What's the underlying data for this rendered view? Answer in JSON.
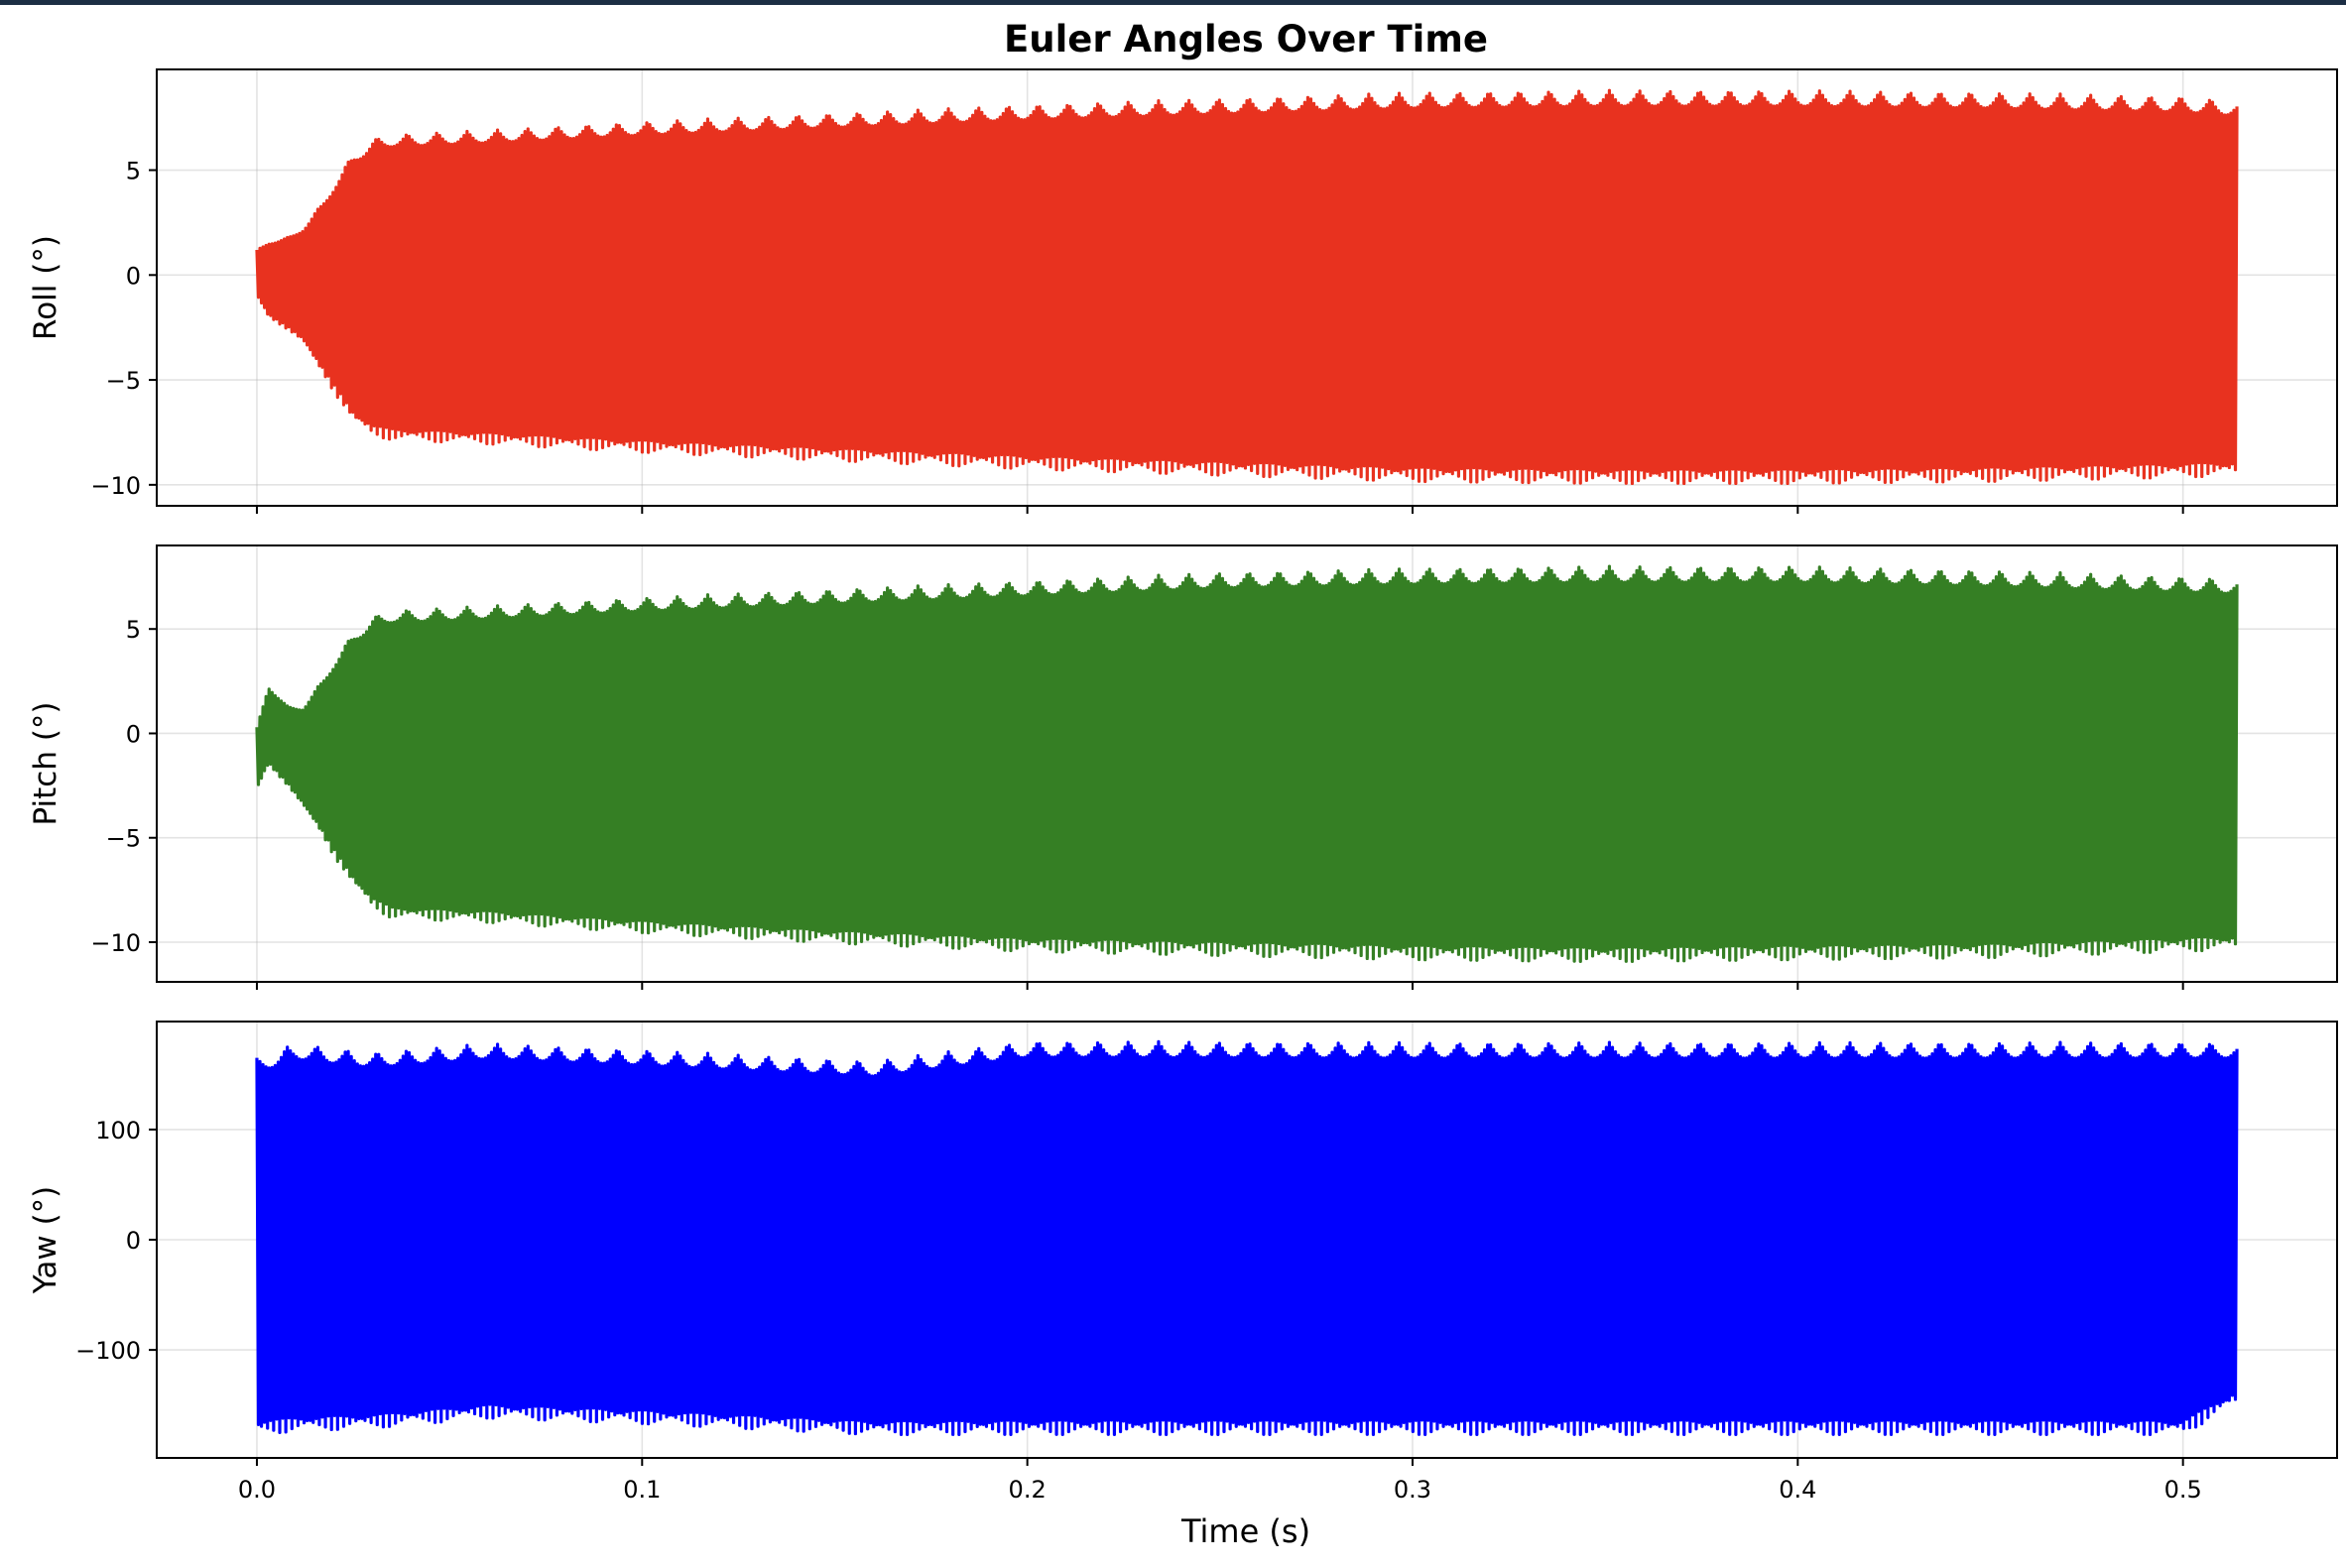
{
  "chart_data": {
    "type": "line",
    "title": "Euler Angles Over Time",
    "xlabel": "Time (s)",
    "xlim": [
      -0.026,
      0.54
    ],
    "xticks": [
      0.0,
      0.1,
      0.2,
      0.3,
      0.4,
      0.5
    ],
    "xtick_labels": [
      "0.0",
      "0.1",
      "0.2",
      "0.3",
      "0.4",
      "0.5"
    ],
    "grid": true,
    "t_end": 0.514,
    "panels": [
      {
        "ylabel": "Roll (°)",
        "color": "#e8321f",
        "ylim": [
          -11.0,
          9.8
        ],
        "yticks": [
          5,
          0,
          -5,
          -10
        ],
        "ytick_labels": [
          "5",
          "0",
          "−5",
          "−10"
        ],
        "envelope": {
          "t": [
            0.0,
            0.003,
            0.008,
            0.012,
            0.016,
            0.02,
            0.025,
            0.03,
            0.035,
            0.06,
            0.1,
            0.15,
            0.2,
            0.25,
            0.3,
            0.35,
            0.4,
            0.45,
            0.5,
            0.514
          ],
          "upper": [
            1.2,
            1.6,
            1.8,
            2.3,
            3.2,
            4.4,
            5.8,
            6.5,
            6.7,
            6.9,
            7.3,
            7.7,
            8.1,
            8.4,
            8.7,
            8.8,
            8.8,
            8.7,
            8.5,
            8.3
          ],
          "lower": [
            -1.0,
            -2.0,
            -2.6,
            -3.2,
            -4.4,
            -5.6,
            -7.0,
            -7.7,
            -7.9,
            -8.1,
            -8.5,
            -8.9,
            -9.3,
            -9.6,
            -9.9,
            -10.0,
            -10.0,
            -9.9,
            -9.7,
            -9.6
          ]
        }
      },
      {
        "ylabel": "Pitch (°)",
        "color": "#357f24",
        "ylim": [
          -11.9,
          9.0
        ],
        "yticks": [
          5,
          0,
          -5,
          -10
        ],
        "ytick_labels": [
          "5",
          "0",
          "−5",
          "−10"
        ],
        "envelope": {
          "t": [
            0.0,
            0.003,
            0.008,
            0.012,
            0.016,
            0.02,
            0.025,
            0.03,
            0.035,
            0.06,
            0.1,
            0.15,
            0.2,
            0.25,
            0.3,
            0.35,
            0.4,
            0.45,
            0.5,
            0.514
          ],
          "upper": [
            0.3,
            2.3,
            1.3,
            1.3,
            2.3,
            3.5,
            4.8,
            5.6,
            5.9,
            6.1,
            6.5,
            6.9,
            7.3,
            7.7,
            7.9,
            8.0,
            8.0,
            7.8,
            7.5,
            7.4
          ],
          "lower": [
            -2.7,
            -1.5,
            -2.5,
            -3.5,
            -4.6,
            -5.9,
            -7.3,
            -8.4,
            -8.9,
            -9.1,
            -9.6,
            -10.1,
            -10.5,
            -10.7,
            -10.9,
            -11.0,
            -10.9,
            -10.8,
            -10.5,
            -10.4
          ]
        }
      },
      {
        "ylabel": "Yaw (°)",
        "color": "#0000ff",
        "ylim": [
          -198,
          198
        ],
        "yticks": [
          100,
          0,
          -100
        ],
        "ytick_labels": [
          "100",
          "0",
          "−100"
        ],
        "envelope": {
          "t": [
            0.0,
            0.01,
            0.03,
            0.06,
            0.1,
            0.16,
            0.2,
            0.3,
            0.4,
            0.5,
            0.514
          ],
          "upper": [
            165,
            178,
            170,
            178,
            172,
            162,
            180,
            179,
            179,
            179,
            178
          ],
          "lower": [
            -178,
            -175,
            -172,
            -163,
            -168,
            -178,
            -178,
            -178,
            -178,
            -178,
            -150
          ]
        }
      }
    ]
  }
}
